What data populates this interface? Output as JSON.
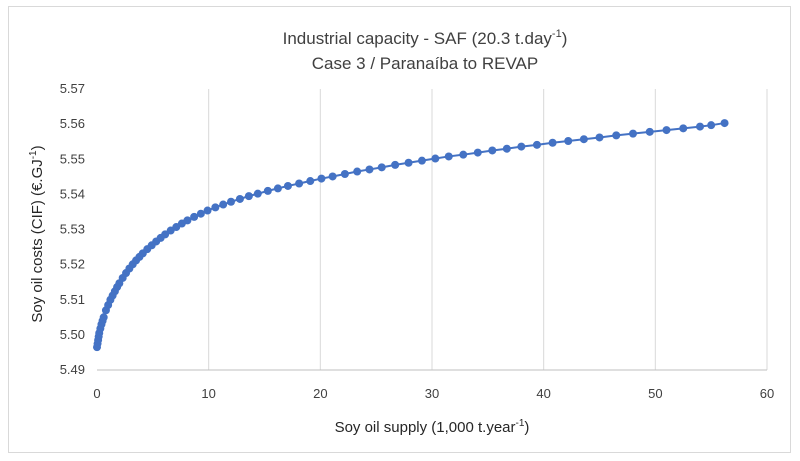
{
  "chart_data": {
    "type": "line",
    "title_main": "Industrial capacity - SAF (20.3 t.day",
    "title_sup": "-1",
    "title_close": ")",
    "subtitle": "Case 3 / Paranaíba  to REVAP",
    "xlabel_main": "Soy oil supply (1,000 t.year",
    "xlabel_sup": "-1",
    "xlabel_close": ")",
    "ylabel": "Soy oil costs (CIF) (€.GJ",
    "ylabel_sup": "-1",
    "ylabel_close": ")",
    "xlim": [
      0,
      60
    ],
    "ylim": [
      5.49,
      5.57
    ],
    "x_ticks": [
      "0",
      "10",
      "20",
      "30",
      "40",
      "50",
      "60"
    ],
    "y_ticks": [
      "5.49",
      "5.50",
      "5.51",
      "5.52",
      "5.53",
      "5.54",
      "5.55",
      "5.56",
      "5.57"
    ],
    "grid": "vertical",
    "legend": "none",
    "series_color": "#4472c4",
    "x": [
      0.0,
      0.05,
      0.1,
      0.15,
      0.2,
      0.3,
      0.4,
      0.5,
      0.6,
      0.8,
      1.0,
      1.2,
      1.4,
      1.6,
      1.8,
      2.0,
      2.3,
      2.6,
      2.9,
      3.2,
      3.5,
      3.8,
      4.1,
      4.5,
      4.9,
      5.3,
      5.7,
      6.1,
      6.6,
      7.1,
      7.6,
      8.1,
      8.7,
      9.3,
      9.9,
      10.6,
      11.3,
      12.0,
      12.8,
      13.6,
      14.4,
      15.3,
      16.2,
      17.1,
      18.1,
      19.1,
      20.1,
      21.1,
      22.2,
      23.3,
      24.4,
      25.5,
      26.7,
      27.9,
      29.1,
      30.3,
      31.5,
      32.8,
      34.1,
      35.4,
      36.7,
      38.0,
      39.4,
      40.8,
      42.2,
      43.6,
      45.0,
      46.5,
      48.0,
      49.5,
      51.0,
      52.5,
      54.0,
      55.0,
      56.2
    ],
    "y": [
      5.4965,
      5.4975,
      5.4985,
      5.4995,
      5.5005,
      5.5018,
      5.503,
      5.504,
      5.505,
      5.507,
      5.5085,
      5.51,
      5.5112,
      5.5124,
      5.5136,
      5.5147,
      5.5162,
      5.5176,
      5.5189,
      5.5201,
      5.5212,
      5.5222,
      5.5232,
      5.5244,
      5.5255,
      5.5266,
      5.5276,
      5.5286,
      5.5297,
      5.5307,
      5.5317,
      5.5326,
      5.5336,
      5.5345,
      5.5354,
      5.5363,
      5.5371,
      5.5379,
      5.5387,
      5.5395,
      5.5402,
      5.541,
      5.5417,
      5.5424,
      5.5431,
      5.5438,
      5.5445,
      5.5451,
      5.5458,
      5.5465,
      5.5471,
      5.5477,
      5.5484,
      5.549,
      5.5496,
      5.5502,
      5.5508,
      5.5513,
      5.5519,
      5.5525,
      5.553,
      5.5536,
      5.5541,
      5.5547,
      5.5552,
      5.5557,
      5.5562,
      5.5568,
      5.5573,
      5.5578,
      5.5583,
      5.5588,
      5.5593,
      5.5597,
      5.5603
    ]
  }
}
